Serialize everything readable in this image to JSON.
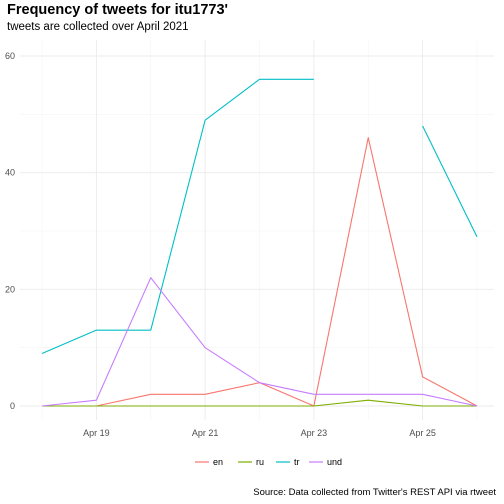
{
  "chart_data": {
    "type": "line",
    "title": "Frequency of tweets for itu1773'",
    "subtitle": "tweets are collected over April 2021",
    "caption": "Source: Data collected from Twitter's REST API via rtweet",
    "xlabel": "",
    "ylabel": "",
    "x": [
      "Apr 18",
      "Apr 19",
      "Apr 20",
      "Apr 21",
      "Apr 22",
      "Apr 23",
      "Apr 24",
      "Apr 25",
      "Apr 26"
    ],
    "x_ticks": [
      "Apr 19",
      "Apr 21",
      "Apr 23",
      "Apr 25"
    ],
    "y_ticks": [
      0,
      20,
      40,
      60
    ],
    "ylim": [
      0,
      60
    ],
    "grid": true,
    "legend_position": "bottom",
    "series": [
      {
        "name": "en",
        "color": "#F8766D",
        "values": [
          0,
          0,
          2,
          2,
          4,
          0,
          46,
          5,
          0
        ]
      },
      {
        "name": "ru",
        "color": "#7CAE00",
        "values": [
          0,
          0,
          0,
          0,
          0,
          0,
          1,
          0,
          0
        ]
      },
      {
        "name": "tr",
        "color": "#00BFC4",
        "values": [
          9,
          13,
          13,
          49,
          56,
          56,
          null,
          48,
          29
        ]
      },
      {
        "name": "und",
        "color": "#C77CFF",
        "values": [
          0,
          1,
          22,
          10,
          4,
          2,
          2,
          2,
          0
        ]
      }
    ]
  }
}
